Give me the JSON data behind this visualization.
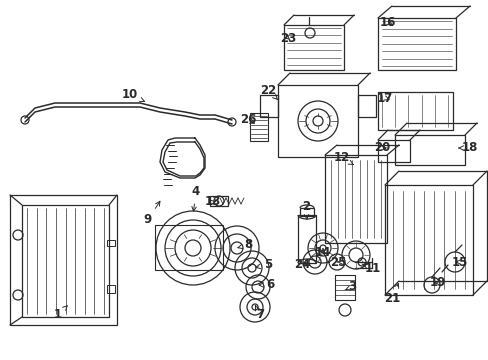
{
  "bg_color": "#ffffff",
  "line_color": "#2a2a2a",
  "fig_width": 4.89,
  "fig_height": 3.6,
  "dpi": 100,
  "font_size": 8.5,
  "arrow_color": "#2a2a2a"
}
